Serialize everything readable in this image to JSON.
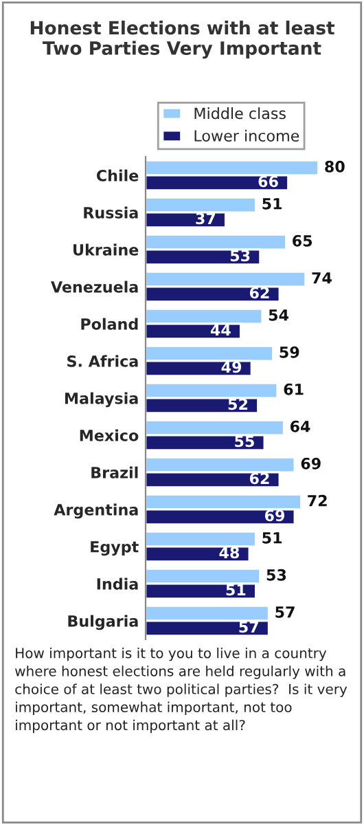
{
  "chart_data": {
    "type": "bar",
    "orientation": "horizontal",
    "title": "Honest Elections with at least\nTwo Parties Very Important",
    "categories": [
      "Chile",
      "Russia",
      "Ukraine",
      "Venezuela",
      "Poland",
      "S. Africa",
      "Malaysia",
      "Mexico",
      "Brazil",
      "Argentina",
      "Egypt",
      "India",
      "Bulgaria"
    ],
    "series": [
      {
        "name": "Middle class",
        "color": "#99ccff",
        "values": [
          80,
          51,
          65,
          74,
          54,
          59,
          61,
          64,
          69,
          72,
          51,
          53,
          57
        ]
      },
      {
        "name": "Lower income",
        "color": "#1a1a73",
        "values": [
          66,
          37,
          53,
          62,
          44,
          49,
          52,
          55,
          62,
          69,
          48,
          51,
          57
        ]
      }
    ],
    "data_labels": true,
    "legend": "top",
    "grid": false,
    "annotations": [
      "How important is it to you to live in a country where honest elections are held regularly with a choice of at least two political parties?  Is it very important, somewhat important, not too important or not important at all?"
    ]
  }
}
